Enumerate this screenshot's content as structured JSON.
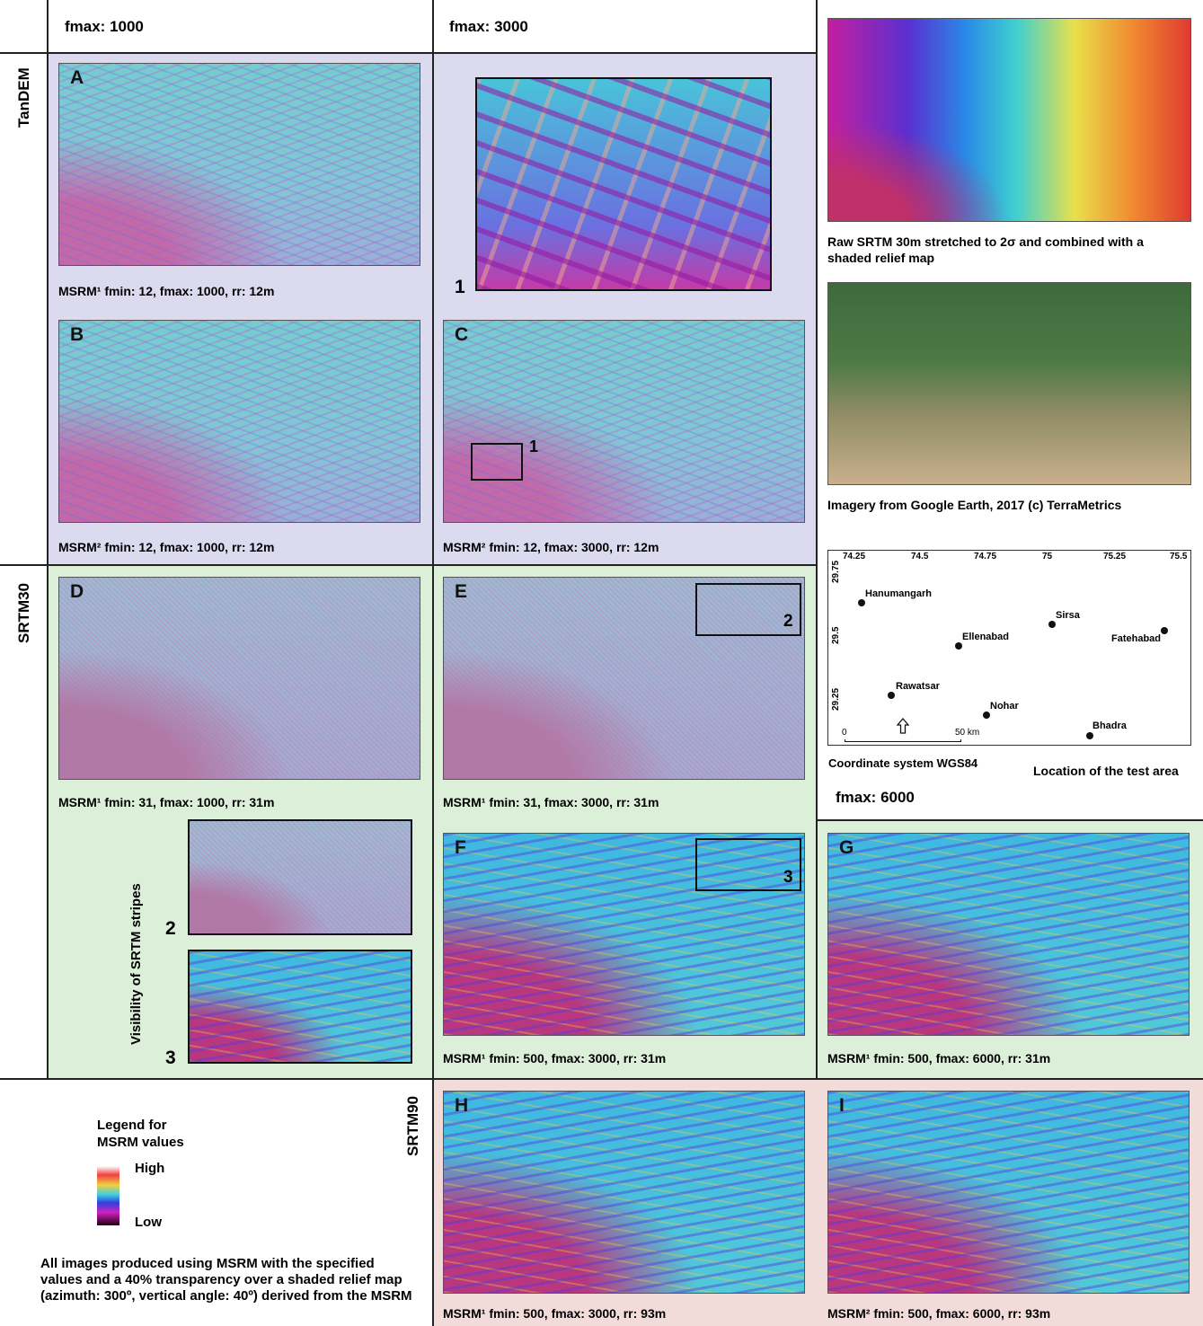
{
  "columns": [
    "fmax: 1000",
    "fmax: 3000",
    "fmax: 6000"
  ],
  "rows": [
    "TanDEM",
    "SRTM30",
    "SRTM90"
  ],
  "panels": [
    {
      "letter": "A",
      "caption": "MSRM¹ fmin: 12, fmax: 1000, rr: 12m"
    },
    {
      "letter": "B",
      "caption": "MSRM² fmin: 12, fmax: 1000, rr: 12m"
    },
    {
      "letter": "C",
      "caption": "MSRM² fmin: 12, fmax: 3000, rr: 12m"
    },
    {
      "letter": "D",
      "caption": "MSRM¹ fmin: 31, fmax: 1000, rr: 31m"
    },
    {
      "letter": "E",
      "caption": "MSRM¹ fmin: 31, fmax: 3000, rr: 31m"
    },
    {
      "letter": "F",
      "caption": "MSRM¹ fmin: 500, fmax: 3000, rr: 31m"
    },
    {
      "letter": "G",
      "caption": "MSRM¹ fmin: 500, fmax: 6000, rr: 31m"
    },
    {
      "letter": "H",
      "caption": "MSRM¹ fmin: 500, fmax: 3000, rr: 93m"
    },
    {
      "letter": "I",
      "caption": "MSRM² fmin: 500, fmax: 6000, rr: 93m"
    }
  ],
  "insets": {
    "side_label": "Visibility of SRTM stripes",
    "labels": [
      "1",
      "2",
      "3"
    ]
  },
  "reference": {
    "srtm_caption": "Raw SRTM 30m stretched to 2σ and combined with a shaded relief map",
    "imagery_caption": "Imagery from Google Earth, 2017 (c) TerraMetrics",
    "map": {
      "lon_ticks": [
        "74.25",
        "74.5",
        "74.75",
        "75",
        "75.25",
        "75.5"
      ],
      "lat_ticks": [
        "29.75",
        "29.5",
        "29.25"
      ],
      "cities": [
        "Hanumangarh",
        "Sirsa",
        "Fatehabad",
        "Ellenabad",
        "Rawatsar",
        "Nohar",
        "Bhadra"
      ],
      "scale": [
        "0",
        "50 km"
      ],
      "crs": "Coordinate system WGS84",
      "caption": "Location of the test area"
    }
  },
  "legend": {
    "title": "Legend for MSRM values",
    "high": "High",
    "low": "Low"
  },
  "note": "All images produced using MSRM with the specified values and a 40% transparency over a shaded relief map (azimuth: 300º, vertical angle: 40º) derived from the MSRM"
}
